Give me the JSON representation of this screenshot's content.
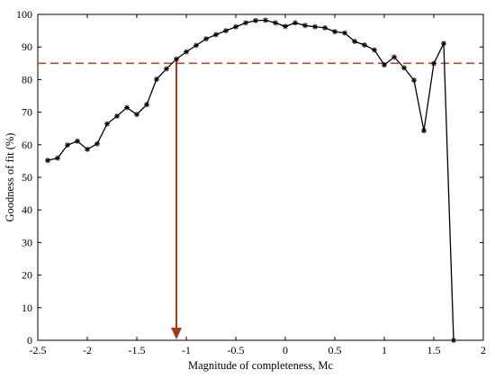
{
  "chart_data": {
    "type": "line",
    "title": "",
    "xlabel": "Magnitude of completeness, Mc",
    "ylabel": "Goodness of fit (%)",
    "xlim": [
      -2.5,
      2
    ],
    "ylim": [
      0,
      100
    ],
    "xticks": [
      -2.5,
      -2,
      -1.5,
      -1,
      -0.5,
      0,
      0.5,
      1,
      1.5,
      2
    ],
    "xtick_labels": [
      "-2.5",
      "-2",
      "-1.5",
      "-1",
      "-0.5",
      "0",
      "0.5",
      "1",
      "1.5",
      "2"
    ],
    "yticks": [
      0,
      10,
      20,
      30,
      40,
      50,
      60,
      70,
      80,
      90,
      100
    ],
    "ytick_labels": [
      "0",
      "10",
      "20",
      "30",
      "40",
      "50",
      "60",
      "70",
      "80",
      "90",
      "100"
    ],
    "grid": false,
    "legend": "none",
    "series": [
      {
        "marker": "asterisk",
        "color": "#000000",
        "x": [
          -2.4,
          -2.3,
          -2.2,
          -2.1,
          -2.0,
          -1.9,
          -1.8,
          -1.7,
          -1.6,
          -1.5,
          -1.4,
          -1.3,
          -1.2,
          -1.1,
          -1.0,
          -0.9,
          -0.8,
          -0.7,
          -0.6,
          -0.5,
          -0.4,
          -0.3,
          -0.2,
          -0.1,
          0.0,
          0.1,
          0.2,
          0.3,
          0.4,
          0.5,
          0.6,
          0.7,
          0.8,
          0.9,
          1.0,
          1.1,
          1.2,
          1.3,
          1.4,
          1.5,
          1.6,
          1.7
        ],
        "y": [
          55.2,
          55.9,
          59.9,
          61.1,
          58.6,
          60.3,
          66.4,
          68.8,
          71.4,
          69.3,
          72.3,
          80.1,
          83.3,
          86.3,
          88.5,
          90.5,
          92.5,
          93.8,
          95.0,
          96.2,
          97.4,
          98.1,
          98.2,
          97.4,
          96.3,
          97.4,
          96.6,
          96.2,
          95.9,
          94.7,
          94.3,
          91.7,
          90.6,
          89.1,
          84.5,
          86.9,
          83.6,
          79.8,
          64.3,
          84.9,
          91.1,
          0.0
        ]
      }
    ],
    "reference_line": {
      "y": 85,
      "color": "#b5472a",
      "style": "dashed"
    },
    "arrow": {
      "x": -1.1,
      "y_from": 86.3,
      "y_to": 0,
      "color": "#a23a1a"
    }
  }
}
